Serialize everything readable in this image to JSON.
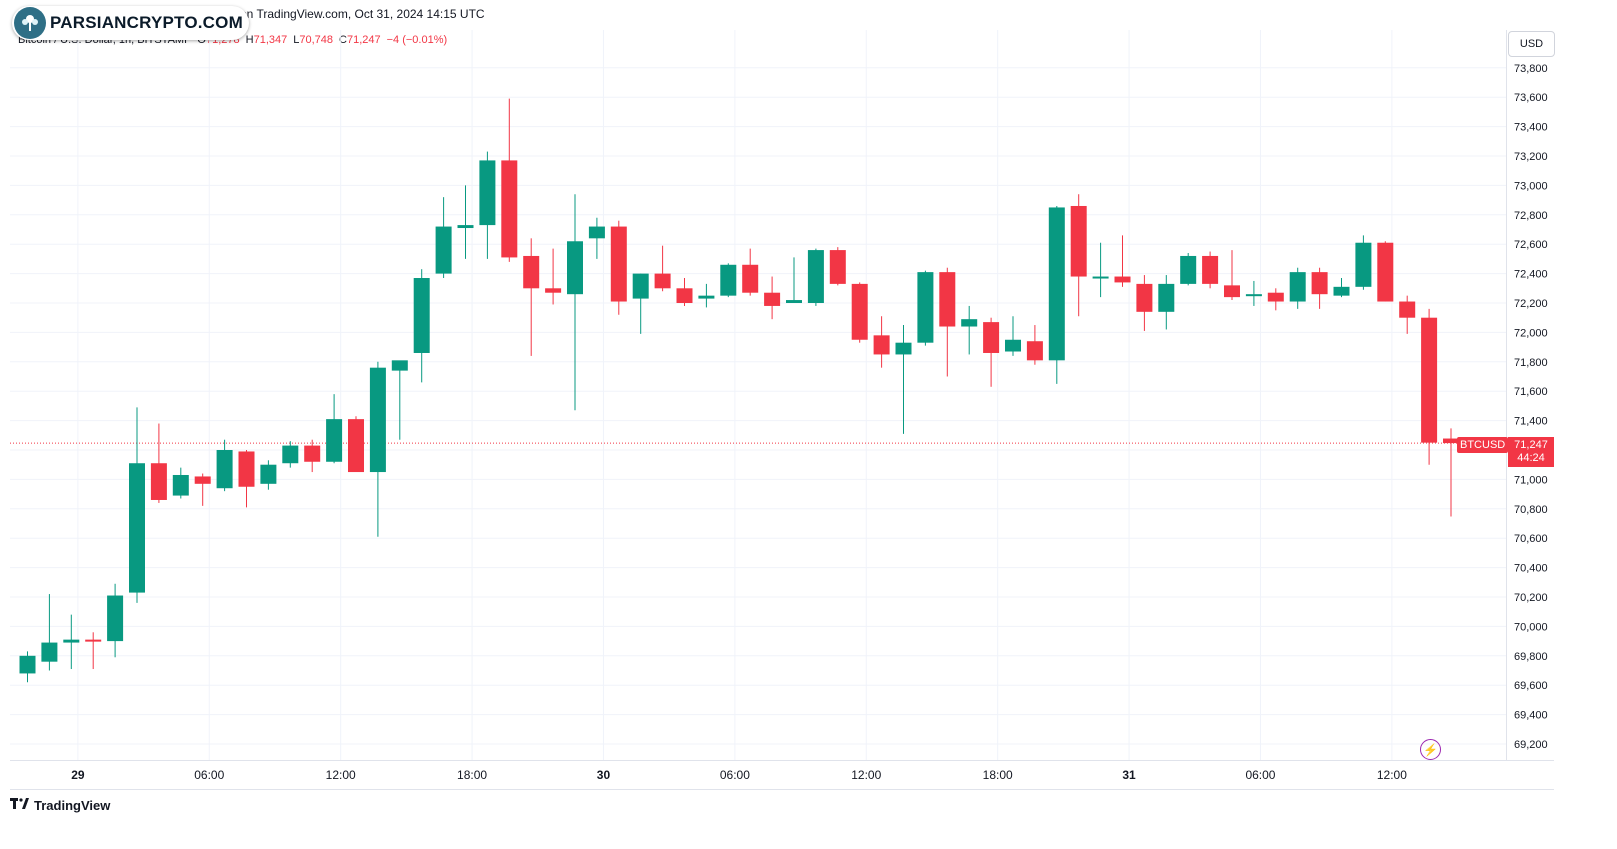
{
  "header": {
    "logo_text": "PARSIANCRYPTO.COM",
    "published": "on TradingView.com, Oct 31, 2024 14:15 UTC",
    "currency": "USD"
  },
  "legend": {
    "symbol": "Bitcoin / U.S. Dollar, 1h, BITSTAMP",
    "o_label": "O",
    "o": "71,278",
    "h_label": "H",
    "h": "71,347",
    "l_label": "L",
    "l": "70,748",
    "c_label": "C",
    "c": "71,247",
    "change": "−4 (−0.01%)"
  },
  "last_price": {
    "ticker": "BTCUSD",
    "price": "71,247",
    "countdown": "44:24"
  },
  "footer": {
    "brand": "TradingView"
  },
  "colors": {
    "up": "#089981",
    "down": "#f23645",
    "grid": "#f0f3fa",
    "text": "#131722"
  },
  "chart_data": {
    "type": "candlestick",
    "symbol": "BTCUSD",
    "interval": "1h",
    "ylim": [
      69050,
      73950
    ],
    "y_ticks": [
      69200,
      69400,
      69600,
      69800,
      70000,
      70200,
      70400,
      70600,
      70800,
      71000,
      71200,
      71400,
      71600,
      71800,
      72000,
      72200,
      72400,
      72600,
      72800,
      73000,
      73200,
      73400,
      73600,
      73800
    ],
    "y_tick_labels": [
      "69,200",
      "69,400",
      "69,600",
      "69,800",
      "70,000",
      "70,200",
      "70,400",
      "70,600",
      "70,800",
      "71,000",
      "71,200",
      "71,400",
      "71,600",
      "71,800",
      "72,000",
      "72,200",
      "72,400",
      "72,600",
      "72,800",
      "73,000",
      "73,200",
      "73,400",
      "73,600",
      "73,800"
    ],
    "x_ticks": [
      {
        "index": 2.3,
        "label": "29",
        "bold": true
      },
      {
        "index": 8.3,
        "label": "06:00",
        "bold": false
      },
      {
        "index": 14.3,
        "label": "12:00",
        "bold": false
      },
      {
        "index": 20.3,
        "label": "18:00",
        "bold": false
      },
      {
        "index": 26.3,
        "label": "30",
        "bold": true
      },
      {
        "index": 32.3,
        "label": "06:00",
        "bold": false
      },
      {
        "index": 38.3,
        "label": "12:00",
        "bold": false
      },
      {
        "index": 44.3,
        "label": "18:00",
        "bold": false
      },
      {
        "index": 50.3,
        "label": "31",
        "bold": true
      },
      {
        "index": 56.3,
        "label": "06:00",
        "bold": false
      },
      {
        "index": 62.3,
        "label": "12:00",
        "bold": false
      }
    ],
    "last_price": 71247,
    "candles": [
      {
        "o": 69680,
        "h": 69830,
        "l": 69620,
        "c": 69800
      },
      {
        "o": 69760,
        "h": 70220,
        "l": 69700,
        "c": 69890
      },
      {
        "o": 69890,
        "h": 70080,
        "l": 69710,
        "c": 69910
      },
      {
        "o": 69910,
        "h": 69960,
        "l": 69710,
        "c": 69900
      },
      {
        "o": 69900,
        "h": 70290,
        "l": 69790,
        "c": 70210
      },
      {
        "o": 70230,
        "h": 71490,
        "l": 70160,
        "c": 71110
      },
      {
        "o": 71110,
        "h": 71380,
        "l": 70840,
        "c": 70860
      },
      {
        "o": 70890,
        "h": 71080,
        "l": 70870,
        "c": 71030
      },
      {
        "o": 71020,
        "h": 71040,
        "l": 70820,
        "c": 70970
      },
      {
        "o": 70940,
        "h": 71270,
        "l": 70920,
        "c": 71200
      },
      {
        "o": 71190,
        "h": 71200,
        "l": 70810,
        "c": 70950
      },
      {
        "o": 70970,
        "h": 71130,
        "l": 70930,
        "c": 71100
      },
      {
        "o": 71110,
        "h": 71260,
        "l": 71080,
        "c": 71230
      },
      {
        "o": 71230,
        "h": 71270,
        "l": 71050,
        "c": 71120
      },
      {
        "o": 71120,
        "h": 71580,
        "l": 71110,
        "c": 71410
      },
      {
        "o": 71410,
        "h": 71430,
        "l": 71050,
        "c": 71050
      },
      {
        "o": 71050,
        "h": 71800,
        "l": 70610,
        "c": 71760
      },
      {
        "o": 71740,
        "h": 71790,
        "l": 71270,
        "c": 71810
      },
      {
        "o": 71860,
        "h": 72430,
        "l": 71660,
        "c": 72370
      },
      {
        "o": 72400,
        "h": 72920,
        "l": 72370,
        "c": 72720
      },
      {
        "o": 72710,
        "h": 73000,
        "l": 72500,
        "c": 72730
      },
      {
        "o": 72730,
        "h": 73230,
        "l": 72500,
        "c": 73170
      },
      {
        "o": 73170,
        "h": 73590,
        "l": 72480,
        "c": 72510
      },
      {
        "o": 72520,
        "h": 72640,
        "l": 71840,
        "c": 72300
      },
      {
        "o": 72300,
        "h": 72570,
        "l": 72190,
        "c": 72270
      },
      {
        "o": 72260,
        "h": 72940,
        "l": 71470,
        "c": 72620
      },
      {
        "o": 72640,
        "h": 72780,
        "l": 72500,
        "c": 72720
      },
      {
        "o": 72720,
        "h": 72760,
        "l": 72120,
        "c": 72210
      },
      {
        "o": 72230,
        "h": 72400,
        "l": 71990,
        "c": 72400
      },
      {
        "o": 72400,
        "h": 72590,
        "l": 72280,
        "c": 72300
      },
      {
        "o": 72300,
        "h": 72370,
        "l": 72180,
        "c": 72200
      },
      {
        "o": 72230,
        "h": 72330,
        "l": 72170,
        "c": 72250
      },
      {
        "o": 72250,
        "h": 72470,
        "l": 72240,
        "c": 72460
      },
      {
        "o": 72460,
        "h": 72570,
        "l": 72250,
        "c": 72270
      },
      {
        "o": 72270,
        "h": 72380,
        "l": 72090,
        "c": 72180
      },
      {
        "o": 72200,
        "h": 72510,
        "l": 72200,
        "c": 72220
      },
      {
        "o": 72200,
        "h": 72570,
        "l": 72180,
        "c": 72560
      },
      {
        "o": 72560,
        "h": 72580,
        "l": 72320,
        "c": 72330
      },
      {
        "o": 72330,
        "h": 72340,
        "l": 71930,
        "c": 71950
      },
      {
        "o": 71980,
        "h": 72110,
        "l": 71760,
        "c": 71850
      },
      {
        "o": 71850,
        "h": 72050,
        "l": 71310,
        "c": 71930
      },
      {
        "o": 71930,
        "h": 72420,
        "l": 71910,
        "c": 72410
      },
      {
        "o": 72410,
        "h": 72440,
        "l": 71700,
        "c": 72040
      },
      {
        "o": 72040,
        "h": 72180,
        "l": 71850,
        "c": 72090
      },
      {
        "o": 72070,
        "h": 72100,
        "l": 71630,
        "c": 71860
      },
      {
        "o": 71870,
        "h": 72110,
        "l": 71840,
        "c": 71950
      },
      {
        "o": 71940,
        "h": 72050,
        "l": 71780,
        "c": 71810
      },
      {
        "o": 71810,
        "h": 72860,
        "l": 71650,
        "c": 72850
      },
      {
        "o": 72860,
        "h": 72940,
        "l": 72110,
        "c": 72380
      },
      {
        "o": 72370,
        "h": 72610,
        "l": 72240,
        "c": 72380
      },
      {
        "o": 72380,
        "h": 72660,
        "l": 72310,
        "c": 72340
      },
      {
        "o": 72330,
        "h": 72390,
        "l": 72010,
        "c": 72140
      },
      {
        "o": 72140,
        "h": 72390,
        "l": 72020,
        "c": 72330
      },
      {
        "o": 72330,
        "h": 72540,
        "l": 72320,
        "c": 72520
      },
      {
        "o": 72520,
        "h": 72550,
        "l": 72300,
        "c": 72330
      },
      {
        "o": 72320,
        "h": 72560,
        "l": 72220,
        "c": 72240
      },
      {
        "o": 72250,
        "h": 72350,
        "l": 72180,
        "c": 72260
      },
      {
        "o": 72270,
        "h": 72300,
        "l": 72150,
        "c": 72210
      },
      {
        "o": 72210,
        "h": 72440,
        "l": 72160,
        "c": 72410
      },
      {
        "o": 72410,
        "h": 72440,
        "l": 72160,
        "c": 72260
      },
      {
        "o": 72250,
        "h": 72370,
        "l": 72240,
        "c": 72310
      },
      {
        "o": 72310,
        "h": 72660,
        "l": 72290,
        "c": 72610
      },
      {
        "o": 72610,
        "h": 72620,
        "l": 72210,
        "c": 72210
      },
      {
        "o": 72210,
        "h": 72250,
        "l": 71990,
        "c": 72100
      },
      {
        "o": 72100,
        "h": 72160,
        "l": 71100,
        "c": 71250
      },
      {
        "o": 71278,
        "h": 71347,
        "l": 70748,
        "c": 71247
      }
    ]
  }
}
